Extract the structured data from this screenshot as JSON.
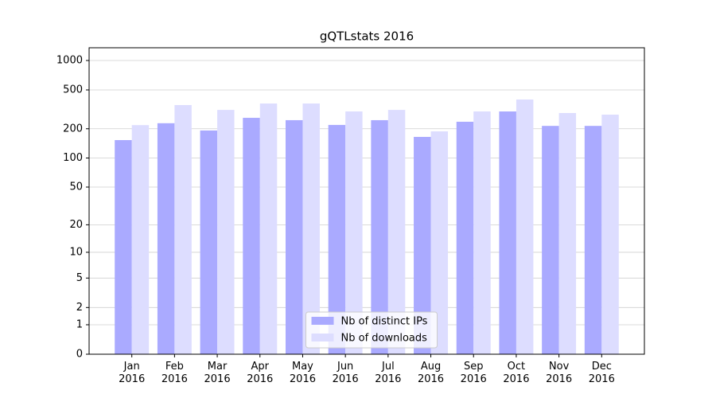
{
  "chart_data": {
    "type": "bar",
    "title": "gQTLstats 2016",
    "categories": [
      "Jan\n2016",
      "Feb\n2016",
      "Mar\n2016",
      "Apr\n2016",
      "May\n2016",
      "Jun\n2016",
      "Jul\n2016",
      "Aug\n2016",
      "Sep\n2016",
      "Oct\n2016",
      "Nov\n2016",
      "Dec\n2016"
    ],
    "series": [
      {
        "name": "Nb of distinct IPs",
        "color": "#aaaaff",
        "values": [
          153,
          228,
          192,
          259,
          245,
          219,
          245,
          165,
          236,
          301,
          214,
          214
        ]
      },
      {
        "name": "Nb of downloads",
        "color": "#ddddff",
        "values": [
          218,
          350,
          312,
          363,
          363,
          301,
          312,
          188,
          301,
          399,
          290,
          279
        ]
      }
    ],
    "yscale": "log1p",
    "ylim": [
      0,
      1350
    ],
    "yticks": [
      0,
      1,
      2,
      5,
      10,
      20,
      50,
      100,
      200,
      500,
      1000
    ],
    "grid": true,
    "legend": "lower center"
  }
}
